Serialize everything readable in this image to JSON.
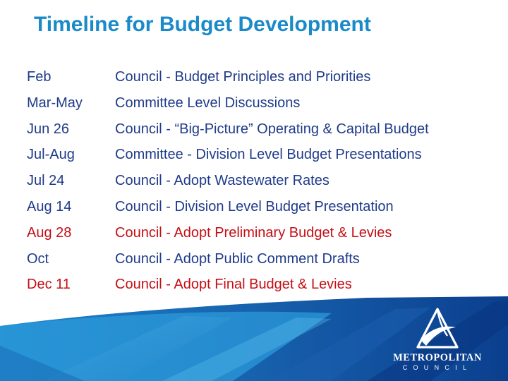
{
  "slide": {
    "title": "Timeline for Budget Development",
    "rows": [
      {
        "date": "Feb",
        "desc": "Council - Budget Principles and Priorities",
        "highlight": false
      },
      {
        "date": "Mar-May",
        "desc": "Committee Level Discussions",
        "highlight": false
      },
      {
        "date": "Jun 26",
        "desc": "Council - “Big-Picture” Operating & Capital Budget",
        "highlight": false
      },
      {
        "date": "Jul-Aug",
        "desc": "Committee - Division Level Budget Presentations",
        "highlight": false
      },
      {
        "date": "Jul 24",
        "desc": "Council - Adopt Wastewater Rates",
        "highlight": false
      },
      {
        "date": "Aug 14",
        "desc": "Council - Division Level Budget Presentation",
        "highlight": false
      },
      {
        "date": "Aug 28",
        "desc": "Council - Adopt Preliminary Budget & Levies",
        "highlight": true
      },
      {
        "date": "Oct",
        "desc": "Council - Adopt Public Comment Drafts",
        "highlight": false
      },
      {
        "date": "Dec 11",
        "desc": "Council - Adopt Final Budget & Levies",
        "highlight": true
      }
    ]
  },
  "logo": {
    "name": "METROPOLITAN",
    "sub": "COUNCIL"
  },
  "colors": {
    "title": "#1b8ac9",
    "text": "#1f3b8a",
    "highlight": "#c40f15",
    "footer_dark": "#0d3e8f",
    "footer_light": "#2fa3df"
  }
}
